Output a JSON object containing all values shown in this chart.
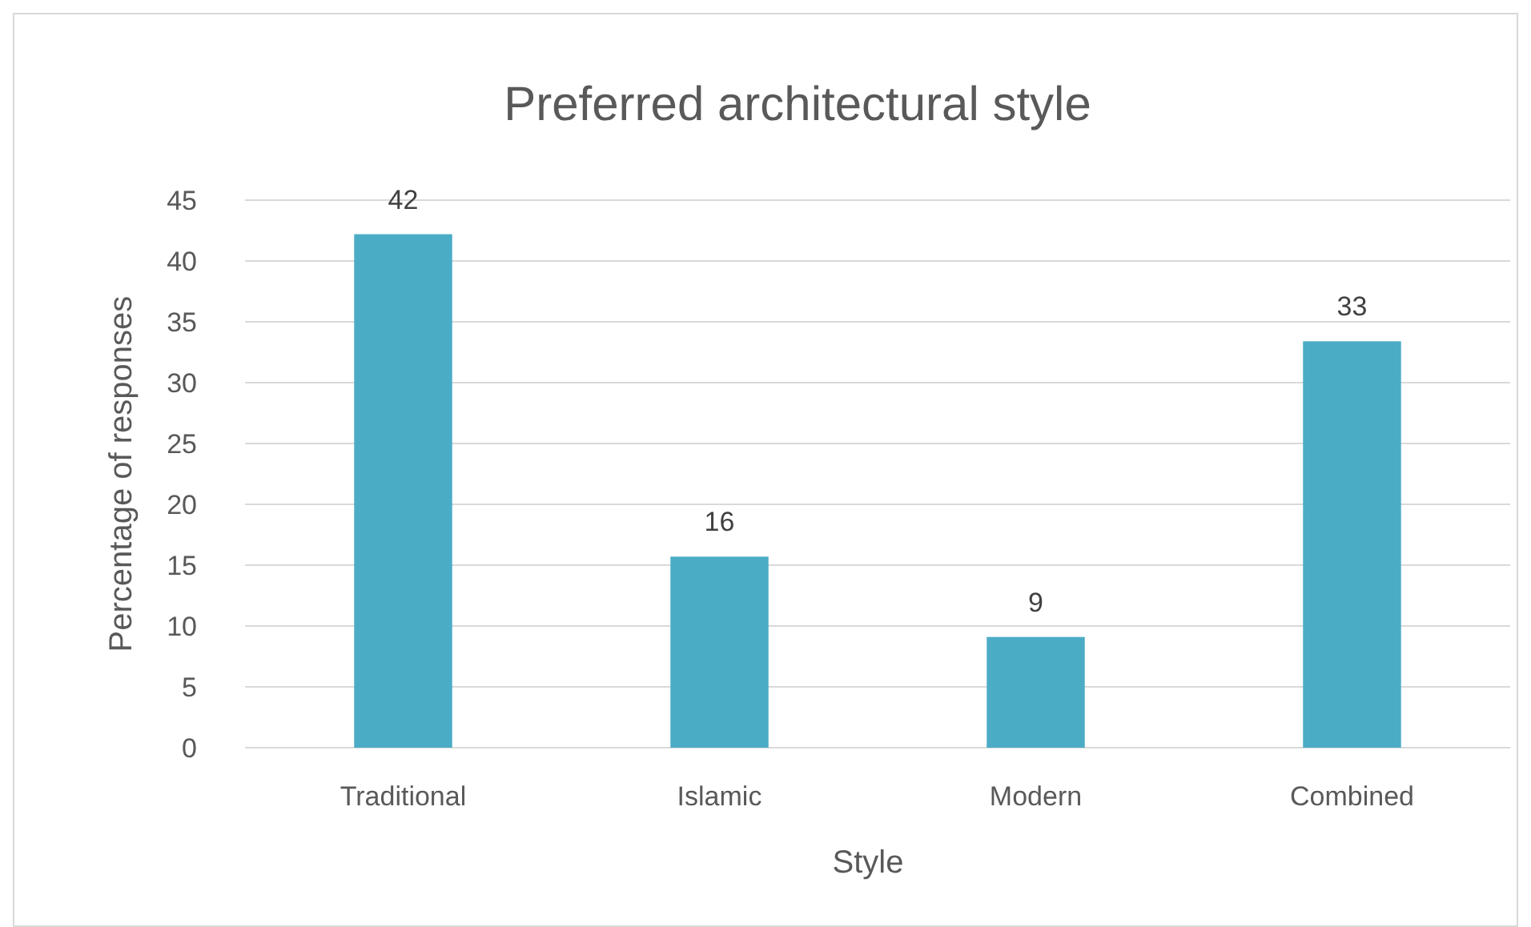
{
  "chart_data": {
    "type": "bar",
    "title": "Preferred architectural style",
    "xlabel": "Style",
    "ylabel": "Percentage of responses",
    "categories": [
      "Traditional",
      "Islamic",
      "Modern",
      "Combined"
    ],
    "values": [
      42.2,
      15.7,
      9.1,
      33.4
    ],
    "value_labels": [
      "42",
      "16",
      "9",
      "33"
    ],
    "color": "#4bacc6",
    "ylim": [
      0,
      45
    ],
    "yticks": [
      0,
      5,
      10,
      15,
      20,
      25,
      30,
      35,
      40,
      45
    ],
    "grid": "y"
  }
}
